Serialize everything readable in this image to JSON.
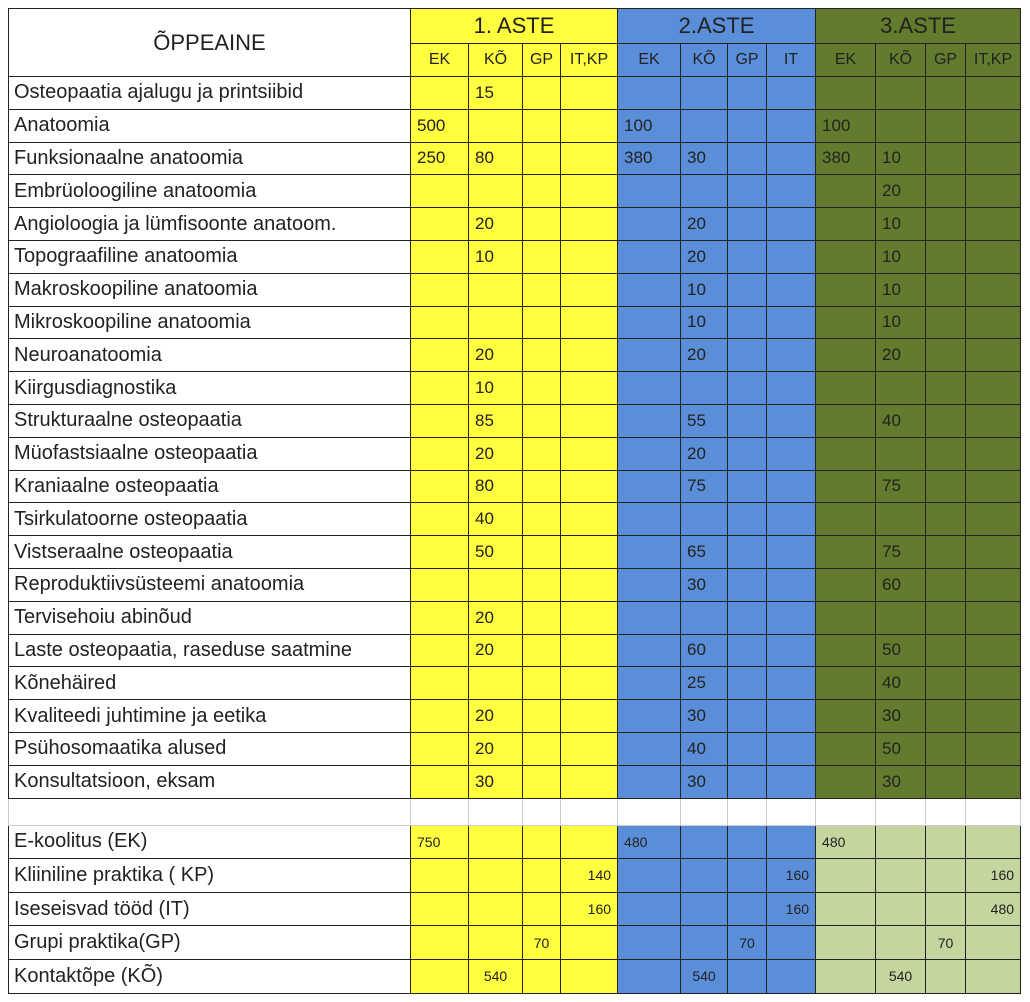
{
  "header": {
    "subject": "ÕPPEAINE",
    "stages": [
      {
        "name": "1. ASTE",
        "columns": [
          "EK",
          "KÕ",
          "GP",
          "IT,KP"
        ]
      },
      {
        "name": "2.ASTE",
        "columns": [
          "EK",
          "KÕ",
          "GP",
          "IT"
        ]
      },
      {
        "name": "3.ASTE",
        "columns": [
          "EK",
          "KÕ",
          "GP",
          "IT,KP"
        ]
      }
    ]
  },
  "rows": [
    {
      "subject": "Osteopaatia ajalugu ja printsiibid",
      "values": [
        null,
        15,
        null,
        null,
        null,
        null,
        null,
        null,
        null,
        null,
        null,
        null
      ]
    },
    {
      "subject": "Anatoomia",
      "values": [
        500,
        null,
        null,
        null,
        100,
        null,
        null,
        null,
        100,
        null,
        null,
        null
      ]
    },
    {
      "subject": "Funksionaalne anatoomia",
      "values": [
        250,
        80,
        null,
        null,
        380,
        30,
        null,
        null,
        380,
        10,
        null,
        null
      ]
    },
    {
      "subject": "Embrüoloogiline anatoomia",
      "values": [
        null,
        null,
        null,
        null,
        null,
        null,
        null,
        null,
        null,
        20,
        null,
        null
      ]
    },
    {
      "subject": "Angioloogia ja lümfisoonte anatoom.",
      "values": [
        null,
        20,
        null,
        null,
        null,
        20,
        null,
        null,
        null,
        10,
        null,
        null
      ]
    },
    {
      "subject": "Topograafiline anatoomia",
      "values": [
        null,
        10,
        null,
        null,
        null,
        20,
        null,
        null,
        null,
        10,
        null,
        null
      ]
    },
    {
      "subject": "Makroskoopiline anatoomia",
      "values": [
        null,
        null,
        null,
        null,
        null,
        10,
        null,
        null,
        null,
        10,
        null,
        null
      ]
    },
    {
      "subject": "Mikroskoopiline anatoomia",
      "values": [
        null,
        null,
        null,
        null,
        null,
        10,
        null,
        null,
        null,
        10,
        null,
        null
      ]
    },
    {
      "subject": "Neuroanatoomia",
      "values": [
        null,
        20,
        null,
        null,
        null,
        20,
        null,
        null,
        null,
        20,
        null,
        null
      ]
    },
    {
      "subject": "Kiirgusdiagnostika",
      "values": [
        null,
        10,
        null,
        null,
        null,
        null,
        null,
        null,
        null,
        null,
        null,
        null
      ]
    },
    {
      "subject": "Strukturaalne osteopaatia",
      "values": [
        null,
        85,
        null,
        null,
        null,
        55,
        null,
        null,
        null,
        40,
        null,
        null
      ]
    },
    {
      "subject": "Müofastsiaalne osteopaatia",
      "values": [
        null,
        20,
        null,
        null,
        null,
        20,
        null,
        null,
        null,
        null,
        null,
        null
      ]
    },
    {
      "subject": "Kraniaalne osteopaatia",
      "values": [
        null,
        80,
        null,
        null,
        null,
        75,
        null,
        null,
        null,
        75,
        null,
        null
      ]
    },
    {
      "subject": "Tsirkulatoorne osteopaatia",
      "values": [
        null,
        40,
        null,
        null,
        null,
        null,
        null,
        null,
        null,
        null,
        null,
        null
      ]
    },
    {
      "subject": "Vistseraalne osteopaatia",
      "values": [
        null,
        50,
        null,
        null,
        null,
        65,
        null,
        null,
        null,
        75,
        null,
        null
      ]
    },
    {
      "subject": "Reproduktiivsüsteemi anatoomia",
      "values": [
        null,
        null,
        null,
        null,
        null,
        30,
        null,
        null,
        null,
        60,
        null,
        null
      ]
    },
    {
      "subject": "Tervisehoiu abinõud",
      "values": [
        null,
        20,
        null,
        null,
        null,
        null,
        null,
        null,
        null,
        null,
        null,
        null
      ]
    },
    {
      "subject": "Laste osteopaatia, raseduse saatmine",
      "values": [
        null,
        20,
        null,
        null,
        null,
        60,
        null,
        null,
        null,
        50,
        null,
        null
      ]
    },
    {
      "subject": "Kõnehäired",
      "values": [
        null,
        null,
        null,
        null,
        null,
        25,
        null,
        null,
        null,
        40,
        null,
        null
      ]
    },
    {
      "subject": "Kvaliteedi juhtimine ja eetika",
      "values": [
        null,
        20,
        null,
        null,
        null,
        30,
        null,
        null,
        null,
        30,
        null,
        null
      ]
    },
    {
      "subject": "Psühosomaatika alused",
      "values": [
        null,
        20,
        null,
        null,
        null,
        40,
        null,
        null,
        null,
        50,
        null,
        null
      ]
    },
    {
      "subject": "Konsultatsioon, eksam",
      "values": [
        null,
        30,
        null,
        null,
        null,
        30,
        null,
        null,
        null,
        30,
        null,
        null
      ]
    }
  ],
  "summary": [
    {
      "subject": "E-koolitus (EK)",
      "values": [
        750,
        null,
        null,
        null,
        480,
        null,
        null,
        null,
        480,
        null,
        null,
        null
      ]
    },
    {
      "subject": "Kliiniline praktika ( KP)",
      "values": [
        null,
        null,
        null,
        140,
        null,
        null,
        null,
        160,
        null,
        null,
        null,
        160
      ]
    },
    {
      "subject": "Iseseisvad tööd (IT)",
      "values": [
        null,
        null,
        null,
        160,
        null,
        null,
        null,
        160,
        null,
        null,
        null,
        480
      ]
    },
    {
      "subject": "Grupi praktika(GP)",
      "values": [
        null,
        null,
        70,
        null,
        null,
        null,
        70,
        null,
        null,
        null,
        70,
        null
      ]
    },
    {
      "subject": "Kontaktõpe (KÕ)",
      "values": [
        null,
        540,
        null,
        null,
        null,
        540,
        null,
        null,
        null,
        540,
        null,
        null
      ]
    }
  ]
}
